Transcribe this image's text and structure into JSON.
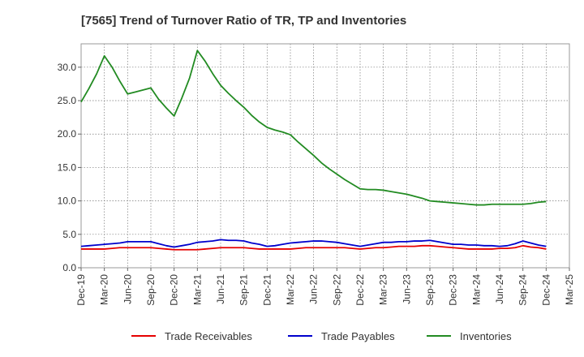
{
  "chart_data": {
    "type": "line",
    "title": "[7565]  Trend of Turnover Ratio of TR, TP and Inventories",
    "xlabel": "",
    "ylabel": "",
    "ylim": [
      0,
      33.5
    ],
    "yticks": [
      "0.0",
      "5.0",
      "10.0",
      "15.0",
      "20.0",
      "25.0",
      "30.0"
    ],
    "ytick_values": [
      0,
      5,
      10,
      15,
      20,
      25,
      30
    ],
    "xtick_labels": [
      "Dec-19",
      "Mar-20",
      "Jun-20",
      "Sep-20",
      "Dec-20",
      "Mar-21",
      "Jun-21",
      "Sep-21",
      "Dec-21",
      "Mar-22",
      "Jun-22",
      "Sep-22",
      "Dec-22",
      "Mar-23",
      "Jun-23",
      "Sep-23",
      "Dec-23",
      "Mar-24",
      "Jun-24",
      "Sep-24",
      "Dec-24",
      "Mar-25"
    ],
    "grid": true,
    "legend_position": "bottom",
    "x": [
      "Dec-19",
      "Jan-20",
      "Feb-20",
      "Mar-20",
      "Apr-20",
      "May-20",
      "Jun-20",
      "Jul-20",
      "Aug-20",
      "Sep-20",
      "Oct-20",
      "Nov-20",
      "Dec-20",
      "Jan-21",
      "Feb-21",
      "Mar-21",
      "Apr-21",
      "May-21",
      "Jun-21",
      "Jul-21",
      "Aug-21",
      "Sep-21",
      "Oct-21",
      "Nov-21",
      "Dec-21",
      "Jan-22",
      "Feb-22",
      "Mar-22",
      "Apr-22",
      "May-22",
      "Jun-22",
      "Jul-22",
      "Aug-22",
      "Sep-22",
      "Oct-22",
      "Nov-22",
      "Dec-22",
      "Jan-23",
      "Feb-23",
      "Mar-23",
      "Apr-23",
      "May-23",
      "Jun-23",
      "Jul-23",
      "Aug-23",
      "Sep-23",
      "Oct-23",
      "Nov-23",
      "Dec-23",
      "Jan-24",
      "Feb-24",
      "Mar-24",
      "Apr-24",
      "May-24",
      "Jun-24",
      "Jul-24",
      "Aug-24",
      "Sep-24",
      "Oct-24",
      "Nov-24",
      "Dec-24"
    ],
    "series": [
      {
        "name": "Trade Receivables",
        "color": "#e60000",
        "values": [
          2.8,
          2.8,
          2.8,
          2.8,
          2.9,
          3.0,
          3.0,
          3.0,
          3.0,
          3.0,
          2.9,
          2.8,
          2.7,
          2.7,
          2.7,
          2.7,
          2.8,
          2.9,
          3.0,
          3.0,
          3.0,
          3.0,
          2.9,
          2.8,
          2.8,
          2.8,
          2.8,
          2.8,
          2.9,
          3.0,
          3.0,
          3.0,
          3.0,
          3.0,
          3.0,
          2.9,
          2.8,
          2.9,
          3.0,
          3.0,
          3.1,
          3.2,
          3.2,
          3.2,
          3.3,
          3.3,
          3.2,
          3.1,
          3.0,
          2.9,
          2.8,
          2.8,
          2.8,
          2.8,
          2.9,
          2.9,
          3.0,
          3.3,
          3.1,
          3.0,
          2.8
        ]
      },
      {
        "name": "Trade Payables",
        "color": "#0000cc",
        "values": [
          3.2,
          3.3,
          3.4,
          3.5,
          3.6,
          3.7,
          3.9,
          3.9,
          3.9,
          3.9,
          3.6,
          3.3,
          3.1,
          3.3,
          3.5,
          3.8,
          3.9,
          4.0,
          4.2,
          4.1,
          4.1,
          4.0,
          3.7,
          3.5,
          3.2,
          3.3,
          3.5,
          3.7,
          3.8,
          3.9,
          4.0,
          4.0,
          3.9,
          3.8,
          3.6,
          3.4,
          3.2,
          3.4,
          3.6,
          3.8,
          3.8,
          3.9,
          3.9,
          4.0,
          4.0,
          4.1,
          3.9,
          3.7,
          3.5,
          3.5,
          3.4,
          3.4,
          3.3,
          3.3,
          3.2,
          3.3,
          3.6,
          4.0,
          3.7,
          3.4,
          3.2
        ]
      },
      {
        "name": "Inventories",
        "color": "#228b22",
        "values": [
          24.8,
          26.8,
          29.0,
          31.7,
          30.0,
          27.9,
          26.0,
          26.3,
          26.6,
          26.9,
          25.2,
          23.9,
          22.7,
          25.4,
          28.4,
          32.5,
          30.9,
          29.0,
          27.3,
          26.1,
          25.0,
          24.0,
          22.8,
          21.8,
          21.0,
          20.6,
          20.3,
          19.9,
          18.8,
          17.8,
          16.8,
          15.7,
          14.8,
          14.0,
          13.2,
          12.5,
          11.8,
          11.7,
          11.7,
          11.6,
          11.4,
          11.2,
          11.0,
          10.7,
          10.4,
          10.0,
          9.9,
          9.8,
          9.7,
          9.6,
          9.5,
          9.4,
          9.4,
          9.5,
          9.5,
          9.5,
          9.5,
          9.5,
          9.6,
          9.8,
          9.9
        ]
      }
    ]
  }
}
